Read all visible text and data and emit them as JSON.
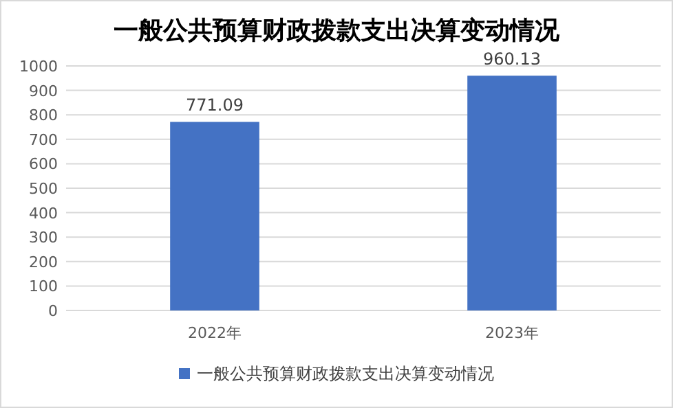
{
  "chart_data": {
    "type": "bar",
    "title": "一般公共预算财政拨款支出决算变动情况",
    "categories": [
      "2022年",
      "2023年"
    ],
    "series": [
      {
        "name": "一般公共预算财政拨款支出决算变动情况",
        "color": "#4472c4",
        "values": [
          771.09,
          960.13
        ]
      }
    ],
    "ylim": [
      0,
      1000
    ],
    "yticks": [
      0,
      100,
      200,
      300,
      400,
      500,
      600,
      700,
      800,
      900,
      1000
    ],
    "grid": "y",
    "legend": "bottom",
    "data_labels": true
  }
}
